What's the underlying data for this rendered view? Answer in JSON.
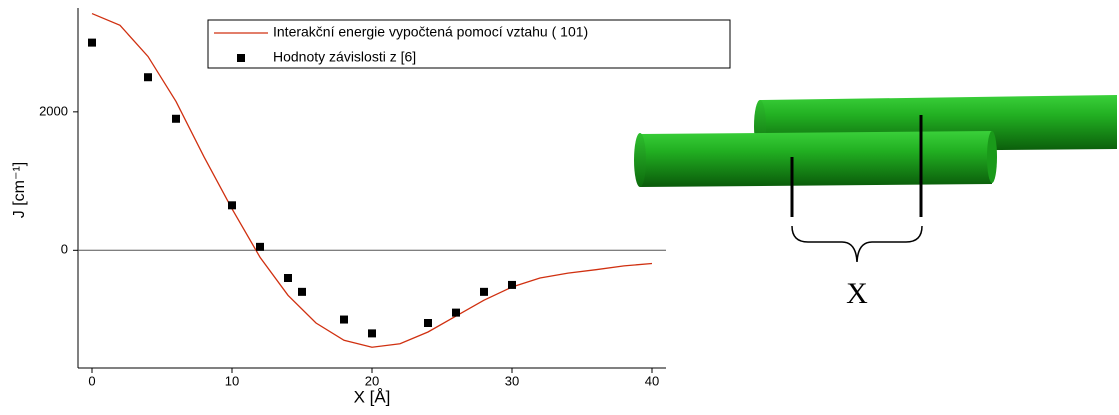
{
  "chart_data": {
    "type": "line",
    "xlabel": "X [Å]",
    "ylabel": "J [cm⁻¹]",
    "xlim": [
      -1,
      41
    ],
    "ylim": [
      -1700,
      3500
    ],
    "xticks": [
      0,
      10,
      20,
      30,
      40
    ],
    "yticks": [
      0,
      2000
    ],
    "zero_line": true,
    "legend": "top",
    "series": [
      {
        "type": "line",
        "name": "Interakční energie vypočtená pomocí vztahu ( 101)",
        "color": "#d03010",
        "x": [
          0,
          2,
          4,
          6,
          8,
          10,
          12,
          14,
          16,
          18,
          20,
          22,
          24,
          26,
          28,
          30,
          32,
          34,
          36,
          38,
          40
        ],
        "values": [
          3420,
          3250,
          2800,
          2150,
          1350,
          600,
          -100,
          -650,
          -1050,
          -1300,
          -1400,
          -1350,
          -1180,
          -950,
          -720,
          -530,
          -400,
          -330,
          -280,
          -225,
          -190
        ]
      },
      {
        "type": "scatter",
        "name": "Hodnoty závislosti z [6]",
        "color": "#000000",
        "x": [
          0,
          4,
          6,
          10,
          12,
          14,
          15,
          18,
          20,
          24,
          26,
          28,
          30
        ],
        "values": [
          3000,
          2500,
          1900,
          650,
          50,
          -400,
          -600,
          -1000,
          -1200,
          -1050,
          -900,
          -600,
          -500
        ]
      }
    ]
  },
  "diagram": {
    "label": "X"
  }
}
